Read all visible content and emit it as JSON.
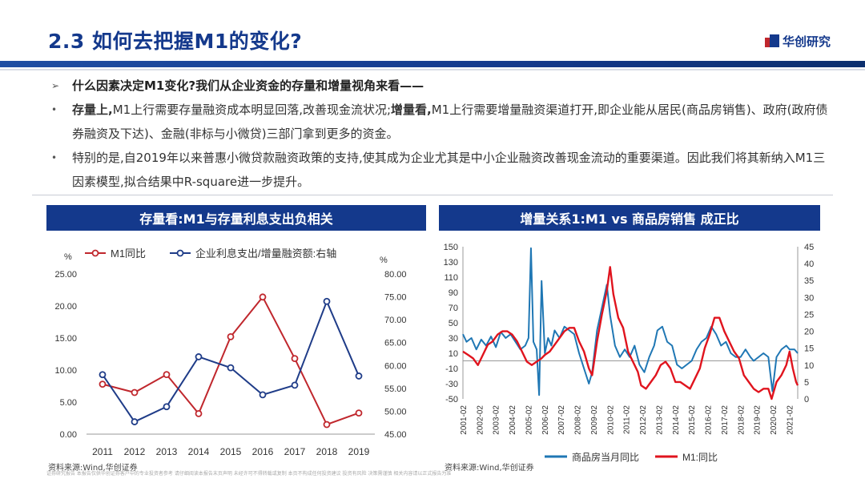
{
  "header": {
    "title": "2.3 如何去把握M1的变化?",
    "logo_text": "华创研究",
    "colors": {
      "brand": "#14398c",
      "red": "#c0272d",
      "blue": "#1f77b4"
    }
  },
  "bullets": [
    {
      "marker": "➢",
      "parts": [
        {
          "text": "什么因素决定M1变化?我们从企业资金的存量和增量视角来看——",
          "bold": true
        }
      ]
    },
    {
      "marker": "•",
      "parts": [
        {
          "text": "存量上,",
          "bold": true
        },
        {
          "text": "M1上行需要存量融资成本明显回落,改善现金流状况;",
          "bold": false
        },
        {
          "text": "增量看,",
          "bold": true
        },
        {
          "text": "M1上行需要增量融资渠道打开,即企业能从居民(商品房销售)、政府(政府债券融资及下达)、金融(非标与小微贷)三部门拿到更多的资金。",
          "bold": false
        }
      ]
    },
    {
      "marker": "•",
      "parts": [
        {
          "text": "特别的是,自2019年以来普惠小微贷款融资政策的支持,使其成为企业尤其是中小企业融资改善现金流动的重要渠道。因此我们将其新纳入M1三因素模型,拟合结果中R-square进一步提升。",
          "bold": false
        }
      ]
    }
  ],
  "left_panel": {
    "banner": "存量看:M1与存量利息支出负相关",
    "source": "资料来源:Wind,华创证券"
  },
  "right_panel": {
    "banner": "增量关系1:M1 vs 商品房销售 成正比",
    "source": "资料来源:Wind,华创证券"
  },
  "disclaimer": "证券研究报告 本报告仅供华创证券客户中的专业投资者参考 请仔细阅读本报告末页声明 未经许可不得转载或复制 本页不构成任何投资建议 投资有风险 决策需谨慎 相关内容请以正式报告为准",
  "chart_data": [
    {
      "type": "line",
      "title": "存量看:M1与存量利息支出负相关",
      "categories": [
        "2011",
        "2012",
        "2013",
        "2014",
        "2015",
        "2016",
        "2017",
        "2018",
        "2019"
      ],
      "left_axis": {
        "unit": "%",
        "ylim": [
          0,
          25
        ],
        "ticks": [
          "0.00",
          "5.00",
          "10.00",
          "15.00",
          "20.00",
          "25.00"
        ]
      },
      "right_axis": {
        "unit": "%",
        "ylim": [
          45,
          80
        ],
        "ticks": [
          "45.00",
          "50.00",
          "55.00",
          "60.00",
          "65.00",
          "70.00",
          "75.00",
          "80.00"
        ]
      },
      "series": [
        {
          "name": "M1同比",
          "axis": "left",
          "color": "#c0272d",
          "values": [
            7.8,
            6.5,
            9.3,
            3.2,
            15.2,
            21.4,
            11.8,
            1.5,
            3.3
          ]
        },
        {
          "name": "企业利息支出/增量融资额:右轴",
          "axis": "right",
          "color": "#1f3c88",
          "values": [
            58.0,
            47.7,
            51.0,
            61.9,
            59.5,
            53.6,
            55.7,
            74.0,
            57.7
          ]
        }
      ],
      "legend": "top"
    },
    {
      "type": "line",
      "title": "增量关系1:M1 vs 商品房销售 成正比",
      "x_ticks": [
        "2001-02",
        "2002-02",
        "2003-02",
        "2004-02",
        "2005-02",
        "2006-02",
        "2007-02",
        "2008-02",
        "2009-02",
        "2010-02",
        "2011-02",
        "2012-02",
        "2013-02",
        "2014-02",
        "2015-02",
        "2016-02",
        "2017-02",
        "2018-02",
        "2019-02",
        "2020-02",
        "2021-02"
      ],
      "x_range": [
        2001.08,
        2021.6
      ],
      "left_axis": {
        "ylim": [
          -50,
          150
        ],
        "ticks": [
          "-50",
          "-30",
          "-10",
          "10",
          "30",
          "50",
          "70",
          "90",
          "110",
          "130",
          "150"
        ]
      },
      "right_axis": {
        "ylim": [
          0,
          45
        ],
        "ticks": [
          "0",
          "5",
          "10",
          "15",
          "20",
          "25",
          "30",
          "35",
          "40",
          "45"
        ]
      },
      "series": [
        {
          "name": "商品房当月同比",
          "axis": "left",
          "color": "#1f77b4",
          "points": [
            [
              2001.08,
              35
            ],
            [
              2001.3,
              25
            ],
            [
              2001.6,
              30
            ],
            [
              2001.9,
              15
            ],
            [
              2002.2,
              28
            ],
            [
              2002.5,
              20
            ],
            [
              2002.8,
              32
            ],
            [
              2003.1,
              18
            ],
            [
              2003.4,
              38
            ],
            [
              2003.7,
              30
            ],
            [
              2004.0,
              35
            ],
            [
              2004.3,
              25
            ],
            [
              2004.6,
              15
            ],
            [
              2004.9,
              20
            ],
            [
              2005.1,
              30
            ],
            [
              2005.25,
              148
            ],
            [
              2005.4,
              25
            ],
            [
              2005.6,
              15
            ],
            [
              2005.75,
              -45
            ],
            [
              2005.9,
              105
            ],
            [
              2006.1,
              10
            ],
            [
              2006.3,
              30
            ],
            [
              2006.5,
              20
            ],
            [
              2006.7,
              40
            ],
            [
              2007.0,
              30
            ],
            [
              2007.3,
              45
            ],
            [
              2007.6,
              40
            ],
            [
              2007.9,
              35
            ],
            [
              2008.2,
              10
            ],
            [
              2008.5,
              -10
            ],
            [
              2008.8,
              -30
            ],
            [
              2009.0,
              -15
            ],
            [
              2009.3,
              40
            ],
            [
              2009.6,
              70
            ],
            [
              2009.9,
              100
            ],
            [
              2010.1,
              60
            ],
            [
              2010.4,
              20
            ],
            [
              2010.7,
              5
            ],
            [
              2011.0,
              15
            ],
            [
              2011.3,
              5
            ],
            [
              2011.6,
              20
            ],
            [
              2011.9,
              -5
            ],
            [
              2012.2,
              -15
            ],
            [
              2012.5,
              5
            ],
            [
              2012.8,
              20
            ],
            [
              2013.0,
              40
            ],
            [
              2013.3,
              45
            ],
            [
              2013.6,
              25
            ],
            [
              2013.9,
              20
            ],
            [
              2014.2,
              -5
            ],
            [
              2014.5,
              -10
            ],
            [
              2014.8,
              -5
            ],
            [
              2015.1,
              0
            ],
            [
              2015.4,
              15
            ],
            [
              2015.7,
              25
            ],
            [
              2016.0,
              30
            ],
            [
              2016.3,
              45
            ],
            [
              2016.6,
              35
            ],
            [
              2016.9,
              20
            ],
            [
              2017.2,
              25
            ],
            [
              2017.5,
              10
            ],
            [
              2017.8,
              5
            ],
            [
              2018.1,
              5
            ],
            [
              2018.4,
              15
            ],
            [
              2018.7,
              5
            ],
            [
              2018.9,
              0
            ],
            [
              2019.2,
              5
            ],
            [
              2019.5,
              10
            ],
            [
              2019.8,
              5
            ],
            [
              2020.05,
              -40
            ],
            [
              2020.3,
              5
            ],
            [
              2020.6,
              15
            ],
            [
              2020.9,
              20
            ],
            [
              2021.1,
              15
            ],
            [
              2021.4,
              15
            ],
            [
              2021.6,
              10
            ]
          ]
        },
        {
          "name": "M1:同比",
          "axis": "right",
          "color": "#e0141e",
          "points": [
            [
              2001.08,
              14
            ],
            [
              2001.4,
              13
            ],
            [
              2001.7,
              12
            ],
            [
              2002.0,
              10
            ],
            [
              2002.3,
              13
            ],
            [
              2002.6,
              16
            ],
            [
              2002.9,
              17
            ],
            [
              2003.2,
              19
            ],
            [
              2003.5,
              20
            ],
            [
              2003.8,
              20
            ],
            [
              2004.1,
              19
            ],
            [
              2004.4,
              17
            ],
            [
              2004.7,
              14
            ],
            [
              2005.0,
              11
            ],
            [
              2005.3,
              10
            ],
            [
              2005.6,
              11
            ],
            [
              2005.9,
              12
            ],
            [
              2006.1,
              13
            ],
            [
              2006.4,
              14
            ],
            [
              2006.7,
              16
            ],
            [
              2007.0,
              18
            ],
            [
              2007.3,
              20
            ],
            [
              2007.6,
              21
            ],
            [
              2007.9,
              21
            ],
            [
              2008.2,
              17
            ],
            [
              2008.5,
              14
            ],
            [
              2008.8,
              9
            ],
            [
              2009.0,
              7
            ],
            [
              2009.3,
              17
            ],
            [
              2009.6,
              25
            ],
            [
              2009.9,
              32
            ],
            [
              2010.1,
              39
            ],
            [
              2010.3,
              31
            ],
            [
              2010.6,
              24
            ],
            [
              2010.9,
              21
            ],
            [
              2011.2,
              14
            ],
            [
              2011.5,
              11
            ],
            [
              2011.8,
              8
            ],
            [
              2012.0,
              4
            ],
            [
              2012.3,
              3
            ],
            [
              2012.6,
              5
            ],
            [
              2012.9,
              7
            ],
            [
              2013.2,
              10
            ],
            [
              2013.5,
              11
            ],
            [
              2013.8,
              9
            ],
            [
              2014.1,
              5
            ],
            [
              2014.4,
              5
            ],
            [
              2014.7,
              4
            ],
            [
              2015.0,
              3
            ],
            [
              2015.3,
              6
            ],
            [
              2015.6,
              9
            ],
            [
              2015.9,
              15
            ],
            [
              2016.2,
              19
            ],
            [
              2016.5,
              24
            ],
            [
              2016.8,
              24
            ],
            [
              2017.1,
              20
            ],
            [
              2017.4,
              17
            ],
            [
              2017.7,
              14
            ],
            [
              2018.0,
              12
            ],
            [
              2018.3,
              7
            ],
            [
              2018.6,
              5
            ],
            [
              2018.9,
              3
            ],
            [
              2019.2,
              2
            ],
            [
              2019.5,
              3
            ],
            [
              2019.8,
              3
            ],
            [
              2020.0,
              0
            ],
            [
              2020.3,
              5
            ],
            [
              2020.6,
              7
            ],
            [
              2020.9,
              10
            ],
            [
              2021.1,
              14
            ],
            [
              2021.3,
              9
            ],
            [
              2021.5,
              5
            ],
            [
              2021.6,
              4
            ]
          ]
        }
      ],
      "legend": "bottom"
    }
  ]
}
